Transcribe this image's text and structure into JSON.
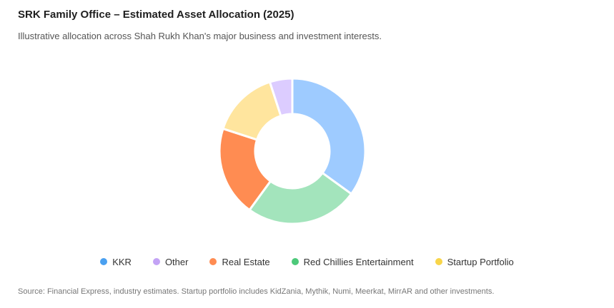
{
  "header": {
    "title": "SRK Family Office – Estimated Asset Allocation (2025)",
    "subtitle": "Illustrative allocation across Shah Rukh Khan's major business and investment interests."
  },
  "footer": {
    "source": "Source: Financial Express, industry estimates. Startup portfolio includes KidZania, Mythik, Numi, Meerkat, MirrAR and other investments."
  },
  "chart_data": {
    "type": "pie",
    "variant": "donut",
    "title": "SRK Family Office – Estimated Asset Allocation (2025)",
    "legend_position": "bottom",
    "slices": [
      {
        "name": "KKR",
        "value": 35,
        "color": "#9ecbff"
      },
      {
        "name": "Red Chillies Entertainment",
        "value": 25,
        "color": "#a3e4bc"
      },
      {
        "name": "Real Estate",
        "value": 20,
        "color": "#ff8c52"
      },
      {
        "name": "Startup Portfolio",
        "value": 15,
        "color": "#ffe59e"
      },
      {
        "name": "Other",
        "value": 5,
        "color": "#dcccff"
      }
    ],
    "legend": [
      {
        "name": "KKR",
        "color": "#4aa0f0"
      },
      {
        "name": "Other",
        "color": "#c3a3f5"
      },
      {
        "name": "Real Estate",
        "color": "#ff8c52"
      },
      {
        "name": "Red Chillies Entertainment",
        "color": "#4dc97a"
      },
      {
        "name": "Startup Portfolio",
        "color": "#f8d54a"
      }
    ]
  }
}
